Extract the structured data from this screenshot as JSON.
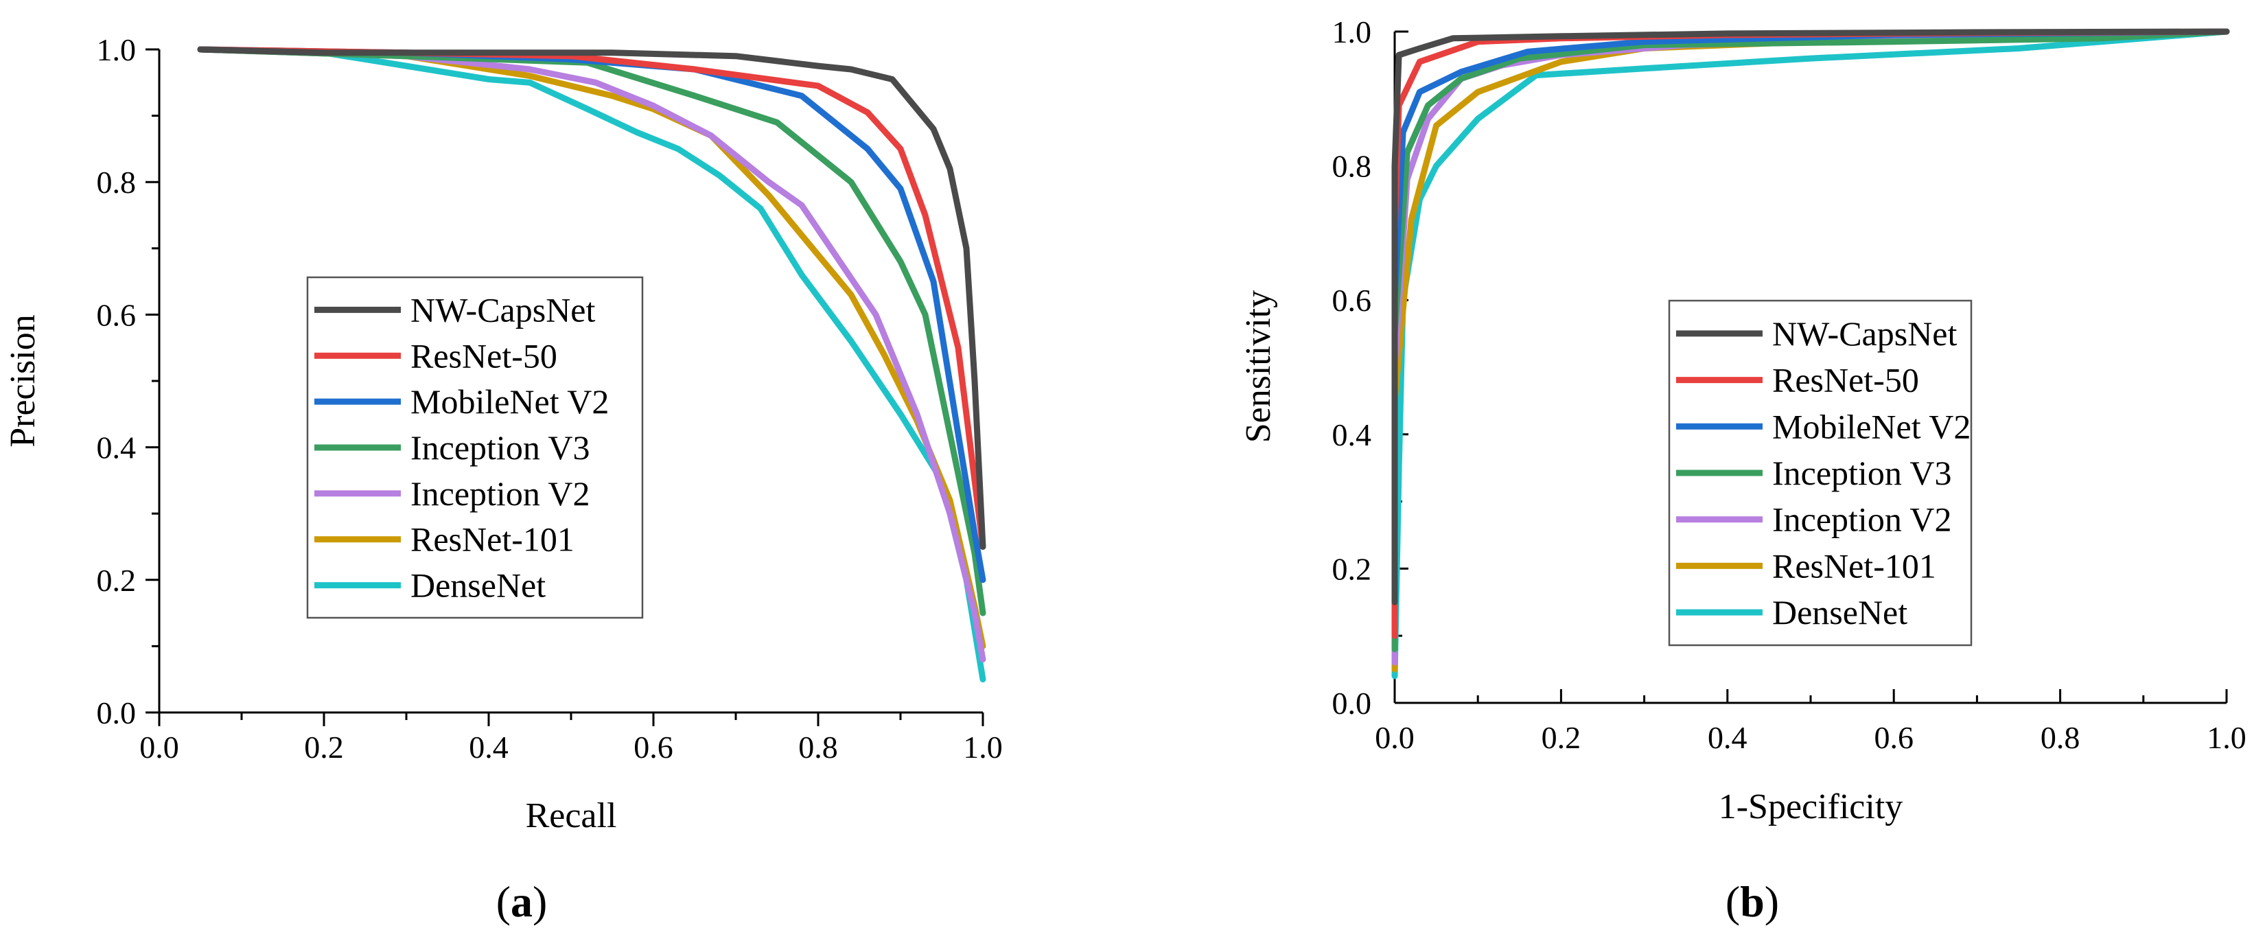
{
  "colors": {
    "NW-CapsNet": "#4a4a4a",
    "ResNet-50": "#e8403e",
    "MobileNet V2": "#1f6fd0",
    "Inception V3": "#3a9e5f",
    "Inception V2": "#b67fe0",
    "ResNet-101": "#cc9a06",
    "DenseNet": "#1ec3c8"
  },
  "chart_data": [
    {
      "type": "line",
      "panel_label": "(a)",
      "xlabel": "Recall",
      "ylabel": "Precision",
      "xlim": [
        0,
        1
      ],
      "ylim": [
        0,
        1
      ],
      "xticks": [
        "0.0",
        "0.2",
        "0.4",
        "0.6",
        "0.8",
        "1.0"
      ],
      "yticks": [
        "0.0",
        "0.2",
        "0.4",
        "0.6",
        "0.8",
        "1.0"
      ],
      "legend_position": "center-left",
      "series": [
        {
          "name": "NW-CapsNet",
          "x": [
            0.05,
            0.2,
            0.4,
            0.55,
            0.7,
            0.8,
            0.84,
            0.89,
            0.94,
            0.96,
            0.98,
            0.99,
            1.0
          ],
          "y": [
            1.0,
            0.995,
            0.995,
            0.995,
            0.99,
            0.975,
            0.97,
            0.955,
            0.88,
            0.82,
            0.7,
            0.5,
            0.25
          ]
        },
        {
          "name": "ResNet-50",
          "x": [
            0.05,
            0.3,
            0.5,
            0.65,
            0.8,
            0.86,
            0.9,
            0.93,
            0.95,
            0.97,
            0.99,
            1.0
          ],
          "y": [
            1.0,
            0.995,
            0.99,
            0.97,
            0.945,
            0.905,
            0.85,
            0.75,
            0.65,
            0.55,
            0.35,
            0.25
          ]
        },
        {
          "name": "MobileNet V2",
          "x": [
            0.05,
            0.3,
            0.5,
            0.65,
            0.78,
            0.86,
            0.9,
            0.94,
            0.97,
            0.99,
            1.0
          ],
          "y": [
            1.0,
            0.995,
            0.985,
            0.97,
            0.93,
            0.85,
            0.79,
            0.65,
            0.42,
            0.27,
            0.2
          ]
        },
        {
          "name": "Inception V3",
          "x": [
            0.05,
            0.3,
            0.52,
            0.65,
            0.75,
            0.84,
            0.9,
            0.93,
            0.96,
            0.99,
            1.0
          ],
          "y": [
            1.0,
            0.99,
            0.98,
            0.93,
            0.89,
            0.8,
            0.68,
            0.6,
            0.42,
            0.24,
            0.15
          ]
        },
        {
          "name": "Inception V2",
          "x": [
            0.05,
            0.3,
            0.45,
            0.53,
            0.6,
            0.67,
            0.74,
            0.78,
            0.87,
            0.92,
            0.96,
            0.99,
            1.0
          ],
          "y": [
            1.0,
            0.99,
            0.97,
            0.95,
            0.915,
            0.87,
            0.8,
            0.765,
            0.6,
            0.45,
            0.3,
            0.15,
            0.08
          ]
        },
        {
          "name": "ResNet-101",
          "x": [
            0.05,
            0.3,
            0.45,
            0.55,
            0.6,
            0.67,
            0.74,
            0.8,
            0.84,
            0.88,
            0.92,
            0.96,
            0.99,
            1.0
          ],
          "y": [
            1.0,
            0.99,
            0.96,
            0.93,
            0.91,
            0.87,
            0.78,
            0.69,
            0.63,
            0.54,
            0.44,
            0.32,
            0.16,
            0.1
          ]
        },
        {
          "name": "DenseNet",
          "x": [
            0.05,
            0.2,
            0.4,
            0.45,
            0.52,
            0.58,
            0.63,
            0.68,
            0.73,
            0.78,
            0.84,
            0.9,
            0.95,
            0.98,
            1.0
          ],
          "y": [
            1.0,
            0.995,
            0.955,
            0.95,
            0.91,
            0.875,
            0.85,
            0.81,
            0.76,
            0.66,
            0.56,
            0.45,
            0.35,
            0.2,
            0.05
          ]
        }
      ]
    },
    {
      "type": "line",
      "panel_label": "(b)",
      "xlabel": "1-Specificity",
      "ylabel": "Sensitivity",
      "xlim": [
        0,
        1
      ],
      "ylim": [
        0,
        1
      ],
      "xticks": [
        "0.0",
        "0.2",
        "0.4",
        "0.6",
        "0.8",
        "1.0"
      ],
      "yticks": [
        "0.0",
        "0.2",
        "0.4",
        "0.6",
        "0.8",
        "1.0"
      ],
      "legend_position": "center",
      "series": [
        {
          "name": "NW-CapsNet",
          "x": [
            0.0,
            0.0,
            0.005,
            0.03,
            0.07,
            0.2,
            0.4,
            0.7,
            1.0
          ],
          "y": [
            0.15,
            0.8,
            0.965,
            0.975,
            0.99,
            0.993,
            0.997,
            0.999,
            1.0
          ]
        },
        {
          "name": "ResNet-50",
          "x": [
            0.0,
            0.0,
            0.005,
            0.03,
            0.1,
            0.2,
            0.4,
            0.7,
            1.0
          ],
          "y": [
            0.1,
            0.7,
            0.89,
            0.955,
            0.985,
            0.99,
            0.995,
            0.998,
            1.0
          ]
        },
        {
          "name": "MobileNet V2",
          "x": [
            0.0,
            0.0,
            0.01,
            0.03,
            0.08,
            0.16,
            0.3,
            0.6,
            1.0
          ],
          "y": [
            0.1,
            0.6,
            0.85,
            0.91,
            0.94,
            0.97,
            0.985,
            0.995,
            1.0
          ]
        },
        {
          "name": "Inception V3",
          "x": [
            0.0,
            0.0,
            0.015,
            0.04,
            0.08,
            0.15,
            0.3,
            0.6,
            0.85,
            1.0
          ],
          "y": [
            0.08,
            0.55,
            0.82,
            0.89,
            0.93,
            0.96,
            0.98,
            0.985,
            0.99,
            1.0
          ]
        },
        {
          "name": "Inception V2",
          "x": [
            0.0,
            0.0,
            0.015,
            0.04,
            0.08,
            0.13,
            0.2,
            0.35,
            0.6,
            1.0
          ],
          "y": [
            0.06,
            0.5,
            0.78,
            0.87,
            0.93,
            0.95,
            0.965,
            0.98,
            0.99,
            1.0
          ]
        },
        {
          "name": "ResNet-101",
          "x": [
            0.0,
            0.0,
            0.02,
            0.05,
            0.1,
            0.2,
            0.3,
            0.5,
            0.8,
            1.0
          ],
          "y": [
            0.05,
            0.45,
            0.72,
            0.86,
            0.91,
            0.955,
            0.975,
            0.985,
            0.99,
            1.0
          ]
        },
        {
          "name": "DenseNet",
          "x": [
            0.0,
            0.005,
            0.01,
            0.03,
            0.05,
            0.1,
            0.17,
            0.3,
            0.5,
            0.75,
            1.0
          ],
          "y": [
            0.04,
            0.35,
            0.6,
            0.75,
            0.8,
            0.87,
            0.935,
            0.945,
            0.96,
            0.975,
            1.0
          ]
        }
      ]
    }
  ]
}
